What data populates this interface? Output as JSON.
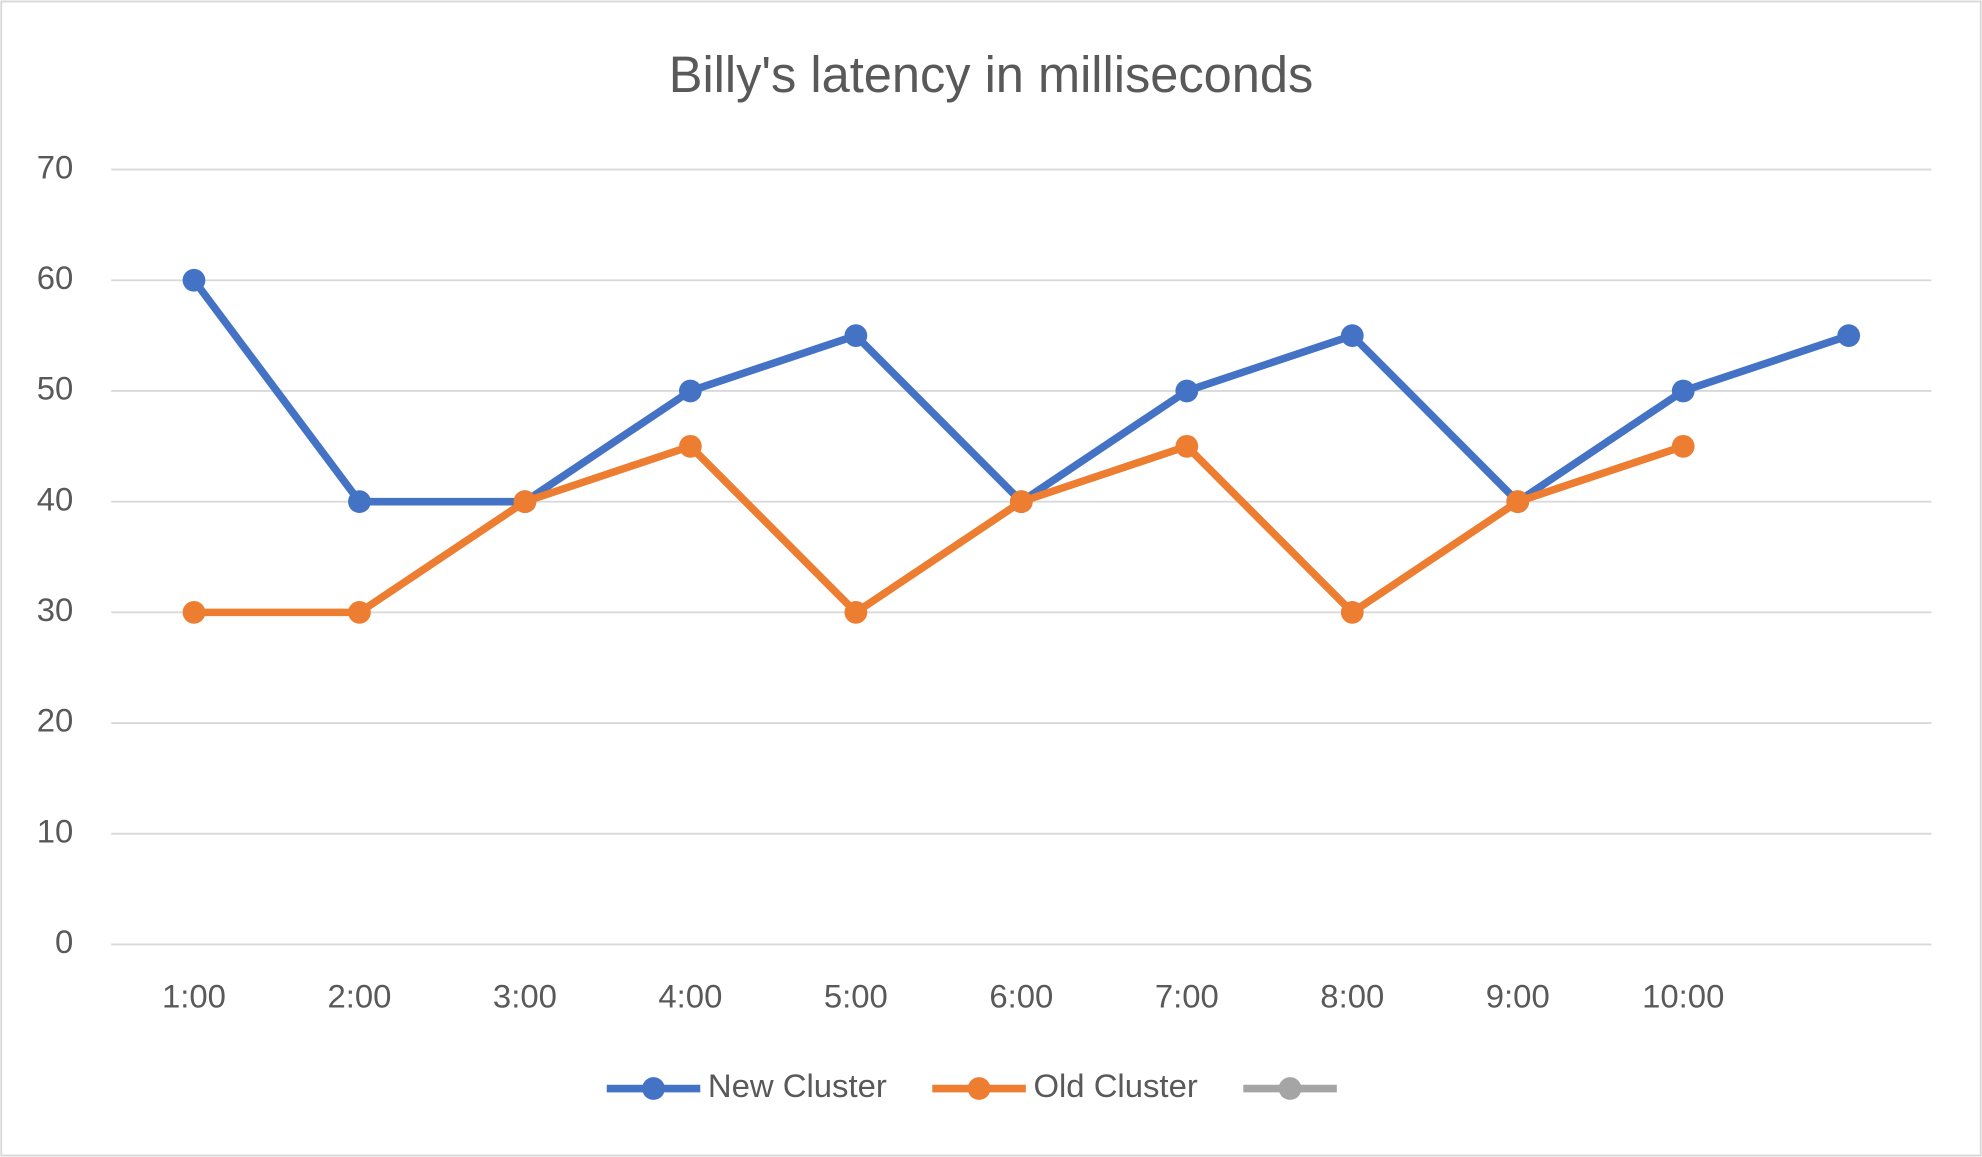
{
  "chart_data": {
    "type": "line",
    "title": "Billy's latency in milliseconds",
    "categories": [
      "1:00",
      "2:00",
      "3:00",
      "4:00",
      "5:00",
      "6:00",
      "7:00",
      "8:00",
      "9:00",
      "10:00",
      null
    ],
    "series": [
      {
        "name": "New Cluster",
        "color": "#4472c4",
        "values": [
          60,
          40,
          40,
          50,
          55,
          40,
          50,
          55,
          40,
          50,
          55
        ]
      },
      {
        "name": "Old Cluster",
        "color": "#ed7d31",
        "values": [
          30,
          30,
          40,
          45,
          30,
          40,
          45,
          30,
          40,
          45,
          null
        ]
      },
      {
        "color": "#a5a5a5",
        "values": [
          null,
          null,
          null,
          null,
          null,
          null,
          null,
          null,
          null,
          null,
          null
        ]
      }
    ],
    "ylim": [
      0,
      70
    ],
    "yticks": [
      0,
      10,
      20,
      30,
      40,
      50,
      60,
      70
    ],
    "grid": true,
    "legend": "bottom"
  }
}
